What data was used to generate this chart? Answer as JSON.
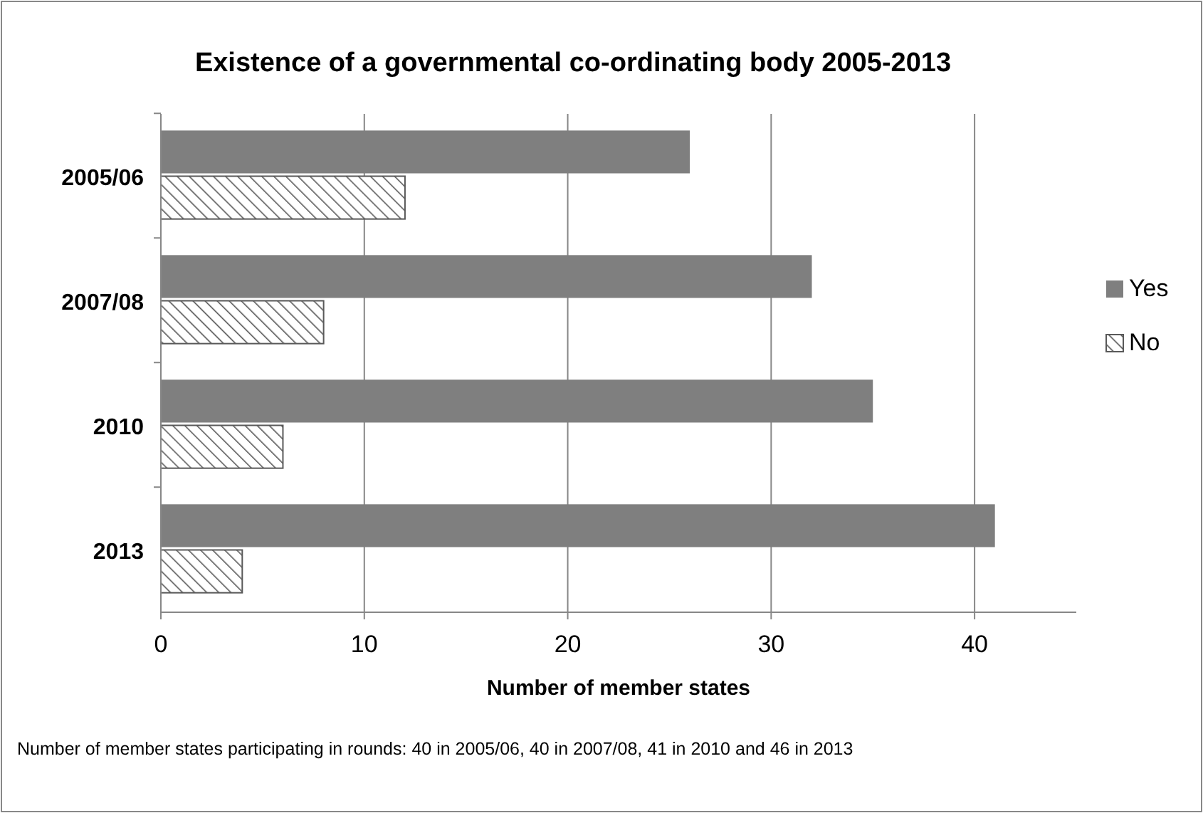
{
  "chart_data": {
    "type": "bar",
    "orientation": "horizontal",
    "title": "Existence of a governmental co-ordinating body 2005-2013",
    "xlabel": "Number of member states",
    "categories": [
      "2005/06",
      "2007/08",
      "2010",
      "2013"
    ],
    "series": [
      {
        "name": "Yes",
        "color": "#7f7f7f",
        "values": [
          26,
          32,
          35,
          41
        ]
      },
      {
        "name": "No",
        "color": "#595959",
        "values": [
          12,
          8,
          6,
          4
        ]
      }
    ],
    "xlim": [
      0,
      45
    ],
    "xticks": [
      0,
      10,
      20,
      30,
      40
    ],
    "grid": "x",
    "legend": "right",
    "annotations": [
      "Number of member states participating in rounds: 40 in 2005/06, 40 in 2007/08, 41 in 2010 and 46 in 2013"
    ]
  }
}
